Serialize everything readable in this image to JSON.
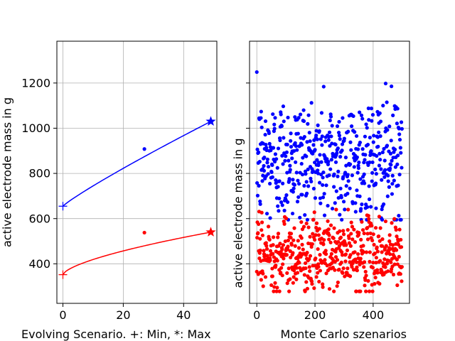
{
  "chart_data": [
    {
      "type": "line",
      "xlabel": "Evolving Scenario. +: Min, *: Max",
      "ylabel": "active electrode mass in g",
      "xlim": [
        -2,
        51
      ],
      "ylim": [
        225,
        1385
      ],
      "xticks": [
        0,
        20,
        40
      ],
      "yticks": [
        400,
        600,
        800,
        1000,
        1200
      ],
      "grid": true,
      "series": [
        {
          "color": "#0000ff",
          "curve": {
            "x": [
              0,
              49
            ],
            "y0": 655,
            "y1": 1030,
            "exponent": 0.9
          },
          "min_marker": {
            "x": 0,
            "y": 655,
            "symbol": "+"
          },
          "max_marker": {
            "x": 49,
            "y": 1030,
            "symbol": "star"
          },
          "points": [
            {
              "x": 27,
              "y": 908
            }
          ]
        },
        {
          "color": "#ff0000",
          "curve": {
            "x": [
              0,
              49
            ],
            "y0": 352,
            "y1": 540,
            "exponent": 0.65
          },
          "min_marker": {
            "x": 0,
            "y": 352,
            "symbol": "+"
          },
          "max_marker": {
            "x": 49,
            "y": 540,
            "symbol": "star"
          },
          "points": [
            {
              "x": 27,
              "y": 538
            }
          ]
        }
      ]
    },
    {
      "type": "scatter",
      "xlabel": "Monte Carlo szenarios",
      "ylabel": "active electrode mass in g",
      "xlim": [
        -25,
        525
      ],
      "ylim": [
        225,
        1385
      ],
      "xticks": [
        0,
        200,
        400
      ],
      "yticks": [
        400,
        600,
        800,
        1000,
        1200
      ],
      "ytick_labels_visible": false,
      "grid": true,
      "series": [
        {
          "color": "#0000ff",
          "n": 500,
          "x_range": [
            0,
            499
          ],
          "y_range": [
            595,
            1338
          ],
          "y_center": 860,
          "y_spread": 140,
          "y_min": 595
        },
        {
          "color": "#ff0000",
          "n": 500,
          "x_range": [
            0,
            499
          ],
          "y_range": [
            278,
            640
          ],
          "y_center": 440,
          "y_spread": 80,
          "y_min": 278
        }
      ]
    }
  ]
}
